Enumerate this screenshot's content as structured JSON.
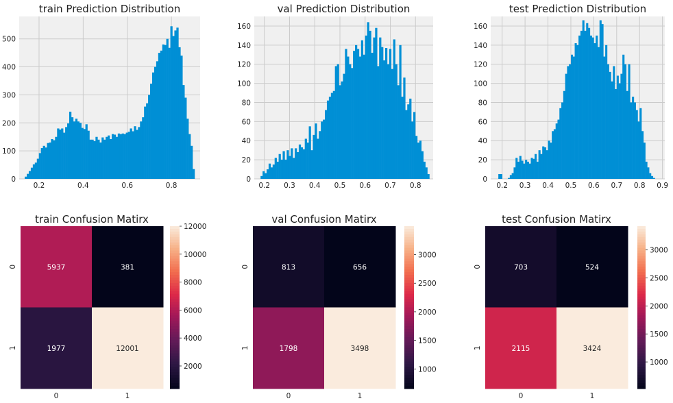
{
  "colors": {
    "bar": "#008fd5",
    "panel_bg": "#f0f0f0",
    "grid": "#cbcbcb",
    "text": "#222222",
    "colormap": "rocket"
  },
  "chart_data": [
    {
      "type": "bar",
      "title": "train Prediction Distribution",
      "x_ticks": [
        0.2,
        0.4,
        0.6,
        0.8
      ],
      "y_ticks": [
        0,
        100,
        200,
        300,
        400,
        500
      ],
      "xlim": [
        0.11,
        0.93
      ],
      "ylim": [
        0,
        580
      ],
      "grid": true,
      "bin_range": [
        0.135,
        0.905
      ],
      "counts": [
        8,
        18,
        28,
        40,
        52,
        58,
        72,
        92,
        110,
        118,
        112,
        128,
        130,
        142,
        138,
        150,
        180,
        176,
        180,
        165,
        185,
        198,
        240,
        220,
        205,
        215,
        205,
        200,
        182,
        178,
        195,
        172,
        140,
        140,
        135,
        150,
        140,
        130,
        148,
        140,
        150,
        155,
        142,
        160,
        158,
        150,
        162,
        160,
        162,
        160,
        165,
        168,
        180,
        170,
        188,
        175,
        185,
        205,
        220,
        258,
        270,
        300,
        340,
        380,
        400,
        420,
        450,
        458,
        480,
        478,
        500,
        468,
        545,
        510,
        530,
        540,
        470,
        440,
        335,
        290,
        215,
        160,
        118,
        35
      ]
    },
    {
      "type": "bar",
      "title": "val Prediction Distribution",
      "x_ticks": [
        0.2,
        0.3,
        0.4,
        0.5,
        0.6,
        0.7,
        0.8
      ],
      "y_ticks": [
        0,
        20,
        40,
        60,
        80,
        100,
        120,
        140,
        160
      ],
      "xlim": [
        0.16,
        0.87
      ],
      "ylim": [
        0,
        170
      ],
      "grid": true,
      "bin_range": [
        0.185,
        0.855
      ],
      "counts": [
        3,
        8,
        6,
        10,
        16,
        12,
        15,
        22,
        18,
        26,
        20,
        29,
        20,
        30,
        24,
        32,
        22,
        32,
        28,
        36,
        33,
        31,
        42,
        38,
        55,
        30,
        46,
        58,
        42,
        50,
        60,
        62,
        72,
        82,
        86,
        90,
        92,
        118,
        120,
        98,
        102,
        110,
        136,
        128,
        120,
        116,
        134,
        140,
        136,
        128,
        145,
        130,
        150,
        164,
        155,
        132,
        148,
        158,
        118,
        148,
        138,
        124,
        137,
        120,
        136,
        115,
        146,
        120,
        98,
        140,
        86,
        106,
        72,
        78,
        84,
        60,
        70,
        45,
        38,
        40,
        29,
        18,
        12,
        5
      ]
    },
    {
      "type": "bar",
      "title": "test Prediction Distribution",
      "x_ticks": [
        0.2,
        0.3,
        0.4,
        0.5,
        0.6,
        0.7,
        0.8,
        0.9
      ],
      "y_ticks": [
        0,
        20,
        40,
        60,
        80,
        100,
        120,
        140,
        160
      ],
      "xlim": [
        0.15,
        0.91
      ],
      "ylim": [
        0,
        170
      ],
      "grid": true,
      "bin_range": [
        0.175,
        0.875
      ],
      "counts": [
        0,
        5,
        5,
        0,
        0,
        0,
        1,
        4,
        6,
        12,
        22,
        18,
        24,
        19,
        16,
        20,
        18,
        16,
        22,
        21,
        26,
        18,
        30,
        26,
        34,
        33,
        30,
        40,
        38,
        50,
        52,
        58,
        62,
        74,
        80,
        92,
        110,
        118,
        120,
        130,
        128,
        142,
        140,
        150,
        155,
        166,
        155,
        163,
        158,
        150,
        148,
        142,
        150,
        138,
        166,
        162,
        128,
        140,
        120,
        112,
        102,
        118,
        94,
        108,
        100,
        110,
        130,
        120,
        92,
        120,
        80,
        86,
        80,
        72,
        60,
        74,
        50,
        38,
        18,
        12,
        6,
        3,
        1,
        0
      ]
    },
    {
      "type": "heatmap",
      "title": "train Confusion Matirx",
      "x_tick_labels": [
        "0",
        "1"
      ],
      "y_tick_labels": [
        "0",
        "1"
      ],
      "matrix": [
        [
          5937,
          381
        ],
        [
          1977,
          12001
        ]
      ],
      "cell_labels": [
        [
          "5937",
          "381"
        ],
        [
          "1977",
          "12001"
        ]
      ],
      "colorbar_ticks": [
        2000,
        4000,
        6000,
        8000,
        10000,
        12000
      ],
      "colorbar_range": [
        381,
        12001
      ]
    },
    {
      "type": "heatmap",
      "title": "val Confusion Matirx",
      "x_tick_labels": [
        "0",
        "1"
      ],
      "y_tick_labels": [
        "0",
        "1"
      ],
      "matrix": [
        [
          813,
          656
        ],
        [
          1798,
          3498
        ]
      ],
      "cell_labels": [
        [
          "813",
          "656"
        ],
        [
          "1798",
          "3498"
        ]
      ],
      "colorbar_ticks": [
        1000,
        1500,
        2000,
        2500,
        3000
      ],
      "colorbar_range": [
        656,
        3498
      ]
    },
    {
      "type": "heatmap",
      "title": "test Confusion Matirx",
      "x_tick_labels": [
        "0",
        "1"
      ],
      "y_tick_labels": [
        "0",
        "1"
      ],
      "matrix": [
        [
          703,
          524
        ],
        [
          2115,
          3424
        ]
      ],
      "cell_labels": [
        [
          "703",
          "524"
        ],
        [
          "2115",
          "3424"
        ]
      ],
      "colorbar_ticks": [
        1000,
        1500,
        2000,
        2500,
        3000
      ],
      "colorbar_range": [
        524,
        3424
      ]
    }
  ]
}
